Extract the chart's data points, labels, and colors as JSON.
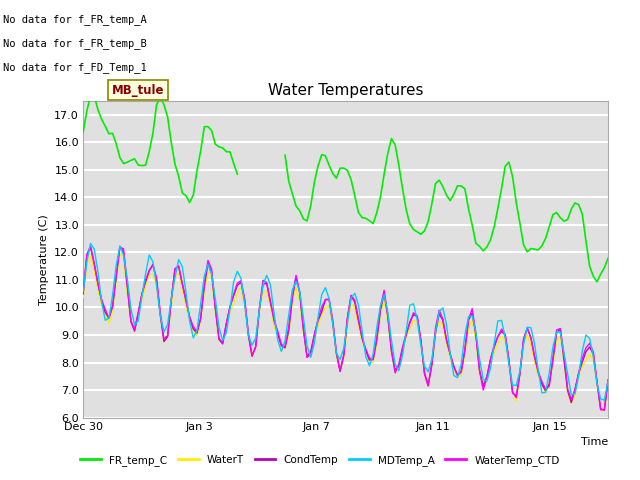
{
  "title": "Water Temperatures",
  "xlabel": "Time",
  "ylabel": "Temperature (C)",
  "ylim": [
    6.0,
    17.5
  ],
  "yticks": [
    6.0,
    7.0,
    8.0,
    9.0,
    10.0,
    11.0,
    12.0,
    13.0,
    14.0,
    15.0,
    16.0,
    17.0
  ],
  "background_color": "#ffffff",
  "plot_bg_color": "#e0e0e0",
  "grid_color": "#ffffff",
  "annotations": [
    "No data for f_FR_temp_A",
    "No data for f_FR_temp_B",
    "No data for f_FD_Temp_1"
  ],
  "annotation_box_label": "MB_tule",
  "legend": [
    "FR_temp_C",
    "WaterT",
    "CondTemp",
    "MDTemp_A",
    "WaterTemp_CTD"
  ],
  "fr_temp_c_color": "#00ee00",
  "water_t_color": "#ffee00",
  "cond_temp_color": "#bb00bb",
  "md_temp_a_color": "#00ccff",
  "water_temp_ctd_color": "#ff00ff",
  "xtick_positions": [
    0,
    4,
    8,
    12,
    16
  ],
  "xtick_labels": [
    "Dec 30",
    "Jan 3",
    "Jan 7",
    "Jan 11",
    "Jan 15"
  ],
  "n_days": 18,
  "figsize": [
    6.4,
    4.8
  ],
  "dpi": 100
}
